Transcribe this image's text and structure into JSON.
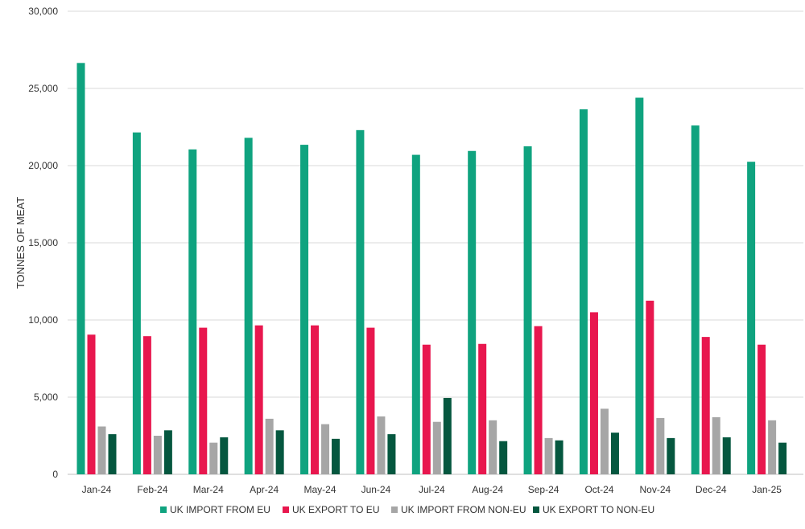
{
  "chart_data": {
    "type": "bar",
    "title": "",
    "xlabel": "",
    "ylabel": "TONNES OF MEAT",
    "ylim": [
      0,
      30000
    ],
    "yticks": [
      0,
      5000,
      10000,
      15000,
      20000,
      25000,
      30000
    ],
    "ytick_labels": [
      "0",
      "5,000",
      "10,000",
      "15,000",
      "20,000",
      "25,000",
      "30,000"
    ],
    "grid": true,
    "legend_position": "bottom",
    "categories": [
      "Jan-24",
      "Feb-24",
      "Mar-24",
      "Apr-24",
      "May-24",
      "Jun-24",
      "Jul-24",
      "Aug-24",
      "Sep-24",
      "Oct-24",
      "Nov-24",
      "Dec-24",
      "Jan-25"
    ],
    "series": [
      {
        "name": "UK IMPORT FROM EU",
        "color": "#0fa37f",
        "values": [
          26650,
          22150,
          21050,
          21800,
          21350,
          22300,
          20700,
          20950,
          21250,
          23650,
          24400,
          22600,
          20250
        ]
      },
      {
        "name": "UK EXPORT TO EU",
        "color": "#e8174e",
        "values": [
          9050,
          8950,
          9500,
          9650,
          9650,
          9500,
          8400,
          8450,
          9600,
          10500,
          11250,
          8900,
          8400
        ]
      },
      {
        "name": "UK IMPORT FROM NON-EU",
        "color": "#a6a6a6",
        "values": [
          3100,
          2500,
          2050,
          3600,
          3250,
          3750,
          3400,
          3500,
          2350,
          4250,
          3650,
          3700,
          3500
        ]
      },
      {
        "name": "UK EXPORT TO NON-EU",
        "color": "#05573f",
        "values": [
          2600,
          2850,
          2400,
          2850,
          2300,
          2600,
          4950,
          2150,
          2200,
          2700,
          2350,
          2400,
          2050
        ]
      }
    ]
  }
}
